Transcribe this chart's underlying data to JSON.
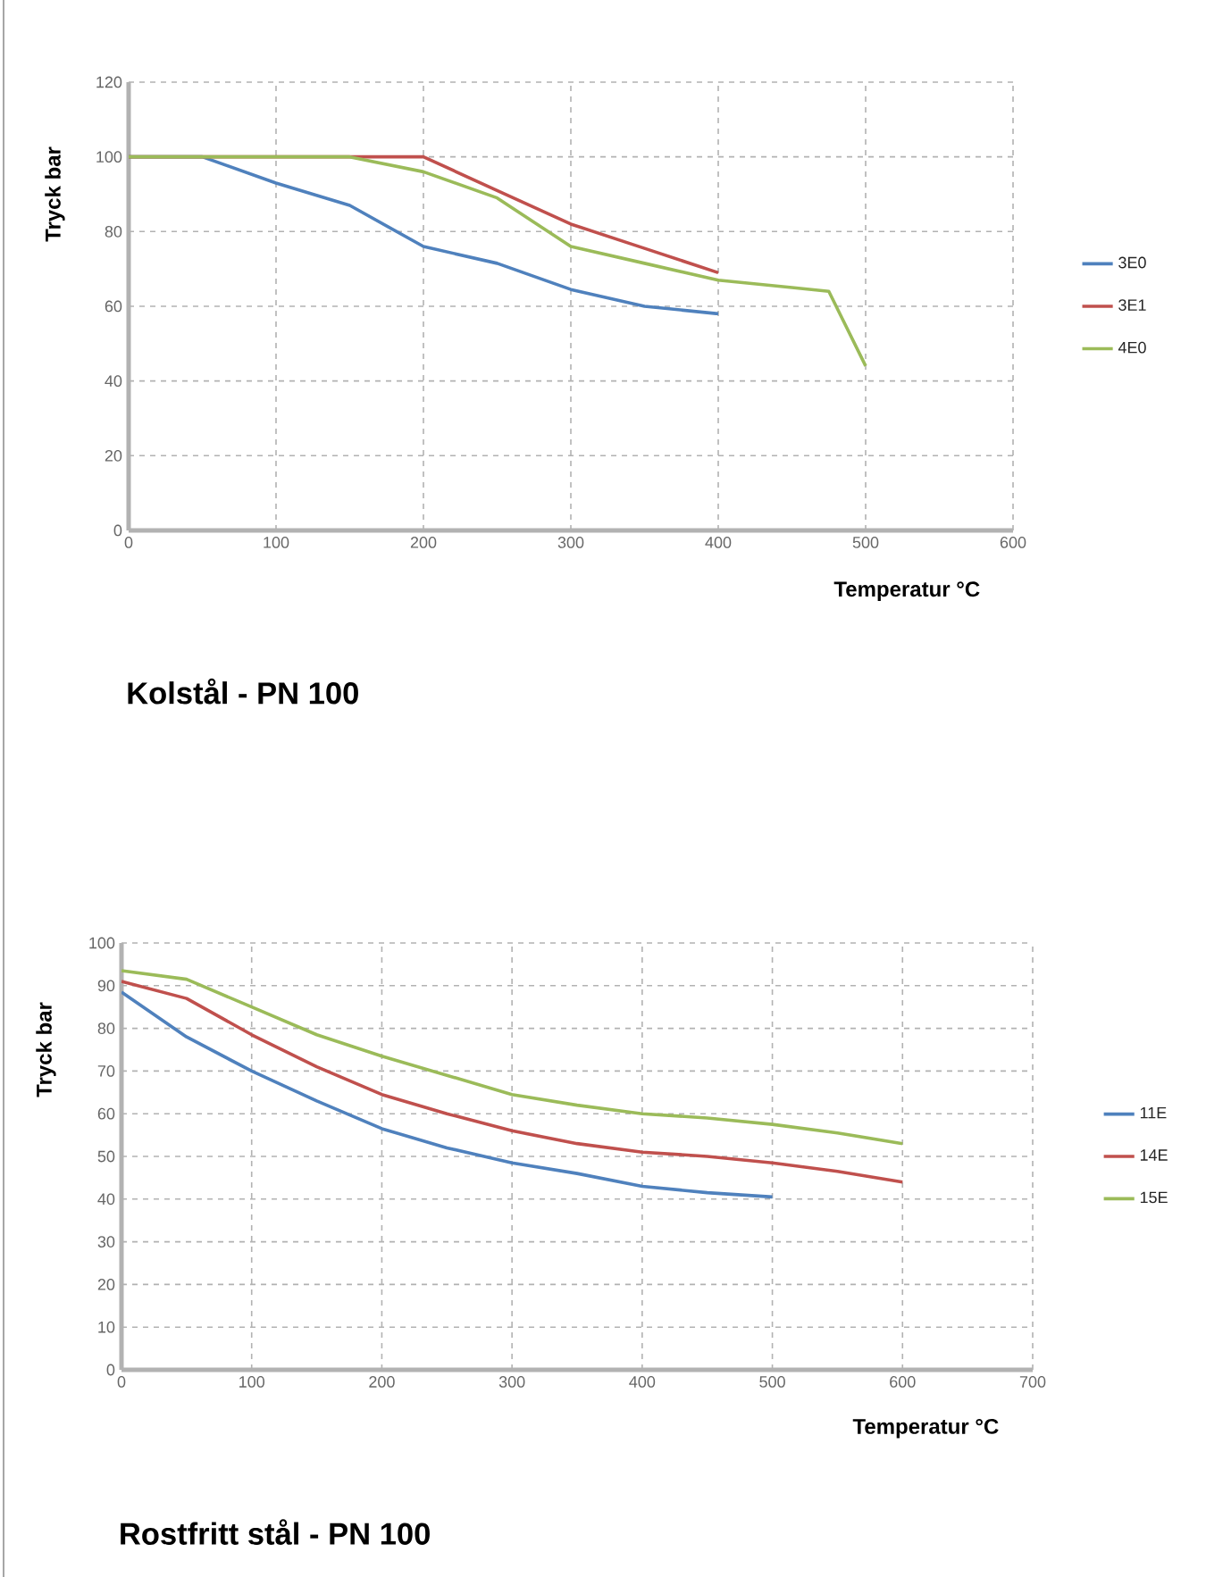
{
  "chart_data": [
    {
      "type": "line",
      "title": "Kolstål - PN 100",
      "xlabel": "Temperatur °C",
      "ylabel": "Tryck bar",
      "xlim": [
        0,
        600
      ],
      "ylim": [
        0,
        120
      ],
      "xticks": [
        0,
        100,
        200,
        300,
        400,
        500,
        600
      ],
      "yticks": [
        0,
        20,
        40,
        60,
        80,
        100,
        120
      ],
      "grid": true,
      "legend": "right",
      "series": [
        {
          "name": "3E0",
          "color": "#4f81bd",
          "x": [
            0,
            50,
            100,
            150,
            200,
            250,
            300,
            350,
            400
          ],
          "values": [
            100,
            100,
            93,
            87,
            76,
            71.5,
            64.5,
            60,
            58
          ]
        },
        {
          "name": "3E1",
          "color": "#c0504d",
          "x": [
            0,
            150,
            200,
            250,
            300,
            350,
            400
          ],
          "values": [
            100,
            100,
            100,
            91,
            82,
            75.5,
            69
          ]
        },
        {
          "name": "4E0",
          "color": "#9bbb59",
          "x": [
            0,
            150,
            200,
            250,
            300,
            350,
            400,
            450,
            475,
            500
          ],
          "values": [
            100,
            100,
            96,
            89,
            76,
            71.5,
            67,
            65,
            64,
            44
          ]
        }
      ]
    },
    {
      "type": "line",
      "title": "Rostfritt stål - PN 100",
      "xlabel": "Temperatur °C",
      "ylabel": "Tryck bar",
      "xlim": [
        0,
        700
      ],
      "ylim": [
        0,
        100
      ],
      "xticks": [
        0,
        100,
        200,
        300,
        400,
        500,
        600,
        700
      ],
      "yticks": [
        0,
        10,
        20,
        30,
        40,
        50,
        60,
        70,
        80,
        90,
        100
      ],
      "grid": true,
      "legend": "right",
      "series": [
        {
          "name": "11E",
          "color": "#4f81bd",
          "x": [
            0,
            50,
            100,
            150,
            200,
            250,
            300,
            350,
            400,
            450,
            500
          ],
          "values": [
            88.5,
            78,
            70,
            63,
            56.5,
            52,
            48.5,
            46,
            43,
            41.5,
            40.5
          ]
        },
        {
          "name": "14E",
          "color": "#c0504d",
          "x": [
            0,
            50,
            100,
            150,
            200,
            250,
            300,
            350,
            400,
            450,
            500,
            550,
            600
          ],
          "values": [
            91,
            87,
            78.5,
            71,
            64.5,
            60,
            56,
            53,
            51,
            50,
            48.5,
            46.5,
            44
          ]
        },
        {
          "name": "15E",
          "color": "#9bbb59",
          "x": [
            0,
            50,
            100,
            150,
            200,
            250,
            300,
            350,
            400,
            450,
            500,
            550,
            600
          ],
          "values": [
            93.5,
            91.5,
            85,
            78.5,
            73.5,
            69,
            64.5,
            62,
            60,
            59,
            57.5,
            55.5,
            53
          ]
        }
      ]
    }
  ]
}
